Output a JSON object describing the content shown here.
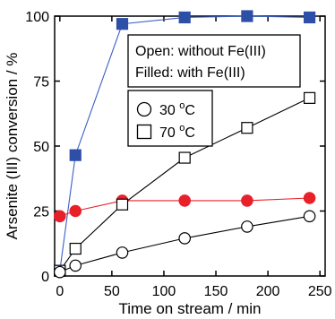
{
  "chart_data": {
    "type": "line",
    "xlabel": "Time on stream / min",
    "ylabel": "Arsenite (III) conversion / %",
    "xlim": [
      -5,
      255
    ],
    "ylim": [
      0,
      100
    ],
    "xticks": [
      0,
      50,
      100,
      150,
      200,
      250
    ],
    "yticks": [
      0,
      25,
      50,
      75,
      100
    ],
    "grid": false,
    "annotation": {
      "line1": "Open: without Fe(III)",
      "line2": "Filled:  with Fe(III)"
    },
    "legend": {
      "placement": "center-right",
      "entries": [
        {
          "marker": "circle",
          "label_main": "30 ",
          "label_sup": "o",
          "label_end": "C"
        },
        {
          "marker": "square",
          "label_main": "70 ",
          "label_sup": "o",
          "label_end": "C"
        }
      ]
    },
    "series": [
      {
        "marker": "square",
        "filled": true,
        "color": "#2e4fa8",
        "line_color": "#3a5fc4",
        "x": [
          0,
          15,
          60,
          120,
          180,
          240
        ],
        "y": [
          2,
          46.5,
          97,
          99.5,
          100,
          99.5
        ]
      },
      {
        "marker": "circle",
        "filled": true,
        "color": "#e8202a",
        "line_color": "#e8202a",
        "x": [
          0,
          15,
          60,
          120,
          180,
          240
        ],
        "y": [
          23,
          25,
          29,
          29,
          29,
          30
        ]
      },
      {
        "marker": "square",
        "filled": false,
        "color": "#000000",
        "line_color": "#000000",
        "x": [
          0,
          15,
          60,
          120,
          180,
          240
        ],
        "y": [
          2,
          10.5,
          27.5,
          45.5,
          57,
          68.5
        ]
      },
      {
        "marker": "circle",
        "filled": false,
        "color": "#000000",
        "line_color": "#000000",
        "x": [
          0,
          15,
          60,
          120,
          180,
          240
        ],
        "y": [
          1.5,
          4,
          9,
          14.5,
          19,
          23
        ]
      }
    ]
  }
}
